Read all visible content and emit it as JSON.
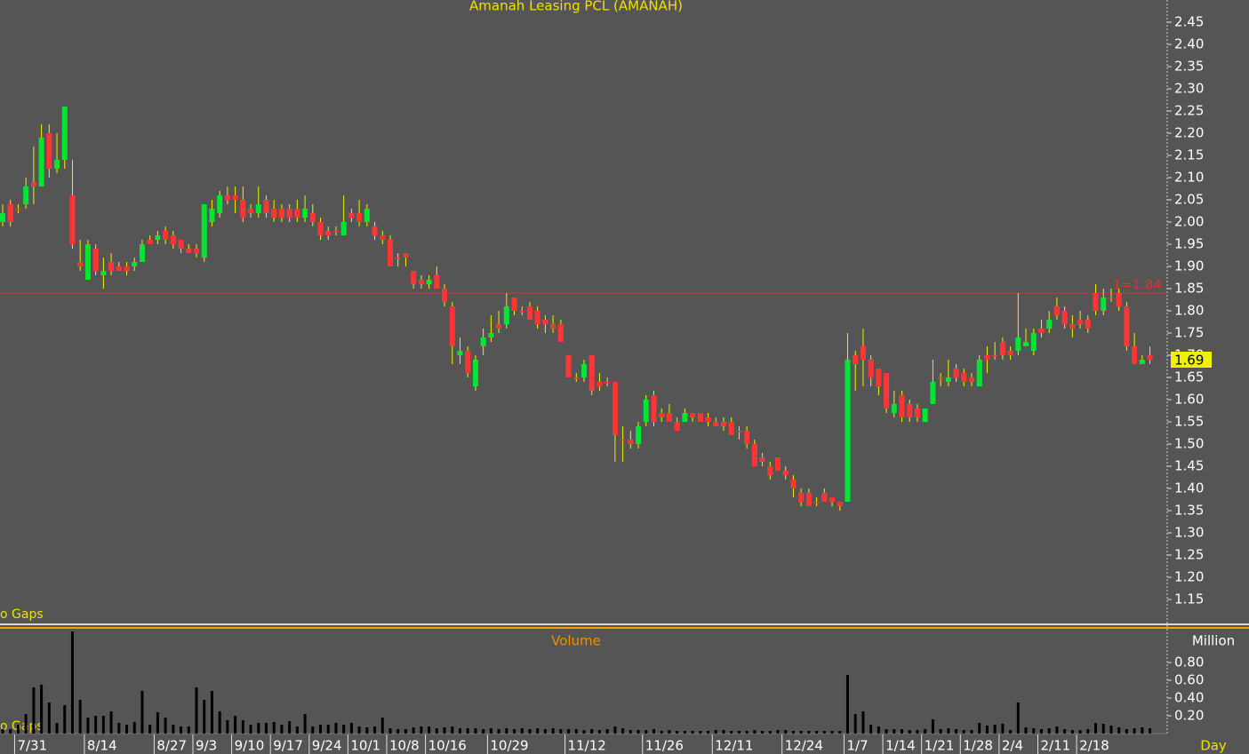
{
  "chart_data": {
    "type": "candlestick",
    "title": "Amanah Leasing PCL (AMANAH)",
    "gap_note": "o Gaps",
    "x_unit": "Day",
    "categories": [
      null,
      null,
      "7/31",
      null,
      null,
      null,
      null,
      null,
      null,
      null,
      null,
      "8/14",
      null,
      null,
      null,
      null,
      null,
      null,
      null,
      null,
      "8/27",
      null,
      null,
      null,
      null,
      "9/3",
      null,
      null,
      null,
      null,
      "9/10",
      null,
      null,
      null,
      null,
      "9/17",
      null,
      null,
      null,
      null,
      "9/24",
      null,
      null,
      null,
      null,
      "10/1",
      null,
      null,
      null,
      null,
      "10/8",
      null,
      null,
      null,
      null,
      "10/16",
      null,
      null,
      null,
      null,
      null,
      null,
      null,
      "10/29",
      null,
      null,
      null,
      null,
      null,
      null,
      null,
      null,
      null,
      "11/12",
      null,
      null,
      null,
      null,
      null,
      null,
      null,
      null,
      null,
      "11/26",
      null,
      null,
      null,
      null,
      null,
      null,
      null,
      null,
      "12/11",
      null,
      null,
      null,
      null,
      null,
      null,
      null,
      null,
      "12/24",
      null,
      null,
      null,
      null,
      null,
      null,
      null,
      "1/7",
      null,
      null,
      null,
      null,
      "1/14",
      null,
      null,
      null,
      null,
      "1/21",
      null,
      null,
      null,
      null,
      "1/28",
      null,
      null,
      null,
      null,
      "2/4",
      null,
      null,
      null,
      null,
      "2/11",
      null,
      null,
      null,
      null,
      "2/18",
      null,
      null,
      null,
      null,
      null,
      null,
      null,
      null,
      null
    ],
    "open": [
      2.0,
      2.04,
      2.03,
      2.04,
      2.09,
      2.08,
      2.2,
      2.12,
      2.14,
      2.06,
      1.91,
      1.87,
      1.94,
      1.88,
      1.91,
      1.9,
      1.9,
      1.9,
      1.91,
      1.96,
      1.96,
      1.98,
      1.97,
      1.96,
      1.94,
      1.94,
      1.92,
      2.0,
      2.02,
      2.06,
      2.06,
      2.05,
      2.03,
      2.02,
      2.05,
      2.03,
      2.03,
      2.03,
      2.03,
      2.01,
      2.02,
      2.0,
      1.98,
      1.98,
      1.97,
      2.02,
      2.02,
      2.0,
      1.99,
      1.97,
      1.96,
      1.92,
      1.93,
      1.89,
      1.87,
      1.86,
      1.88,
      1.85,
      1.81,
      1.7,
      1.71,
      1.63,
      1.72,
      1.74,
      1.77,
      1.77,
      1.83,
      1.8,
      1.81,
      1.8,
      1.78,
      1.77,
      1.77,
      1.7,
      1.65,
      1.65,
      1.7,
      1.64,
      1.64,
      1.64,
      1.51,
      1.51,
      1.5,
      1.55,
      1.61,
      1.57,
      1.57,
      1.55,
      1.55,
      1.57,
      1.57,
      1.56,
      1.55,
      1.55,
      1.55,
      1.53,
      1.53,
      1.5,
      1.47,
      1.45,
      1.47,
      1.44,
      1.42,
      1.39,
      1.39,
      1.37,
      1.39,
      1.38,
      1.37,
      1.37,
      1.7,
      1.72,
      1.69,
      1.67,
      1.66,
      1.57,
      1.61,
      1.59,
      1.58,
      1.55,
      1.59,
      1.65,
      1.64,
      1.67,
      1.66,
      1.65,
      1.63,
      1.7,
      1.7,
      1.73,
      1.71,
      1.71,
      1.72,
      1.71,
      1.76,
      1.76,
      1.81,
      1.8,
      1.77,
      1.78,
      1.78,
      1.84,
      1.8,
      1.83,
      1.84,
      1.81,
      1.72,
      1.68,
      1.7
    ],
    "high": [
      2.04,
      2.05,
      2.04,
      2.1,
      2.17,
      2.22,
      2.22,
      2.2,
      2.26,
      2.14,
      1.96,
      1.96,
      1.95,
      1.92,
      1.93,
      1.91,
      1.91,
      1.92,
      1.96,
      1.97,
      1.98,
      1.99,
      1.98,
      1.96,
      1.95,
      1.95,
      2.04,
      2.05,
      2.07,
      2.08,
      2.08,
      2.08,
      2.04,
      2.08,
      2.06,
      2.05,
      2.04,
      2.04,
      2.05,
      2.06,
      2.04,
      2.01,
      1.99,
      1.99,
      2.06,
      2.03,
      2.05,
      2.04,
      2.0,
      1.98,
      1.97,
      1.93,
      1.93,
      1.89,
      1.88,
      1.88,
      1.9,
      1.86,
      1.82,
      1.74,
      1.72,
      1.7,
      1.76,
      1.79,
      1.8,
      1.84,
      1.83,
      1.81,
      1.82,
      1.81,
      1.79,
      1.79,
      1.78,
      1.7,
      1.66,
      1.69,
      1.7,
      1.66,
      1.65,
      1.64,
      1.54,
      1.53,
      1.55,
      1.61,
      1.62,
      1.58,
      1.59,
      1.56,
      1.58,
      1.57,
      1.57,
      1.57,
      1.56,
      1.56,
      1.56,
      1.54,
      1.54,
      1.51,
      1.48,
      1.46,
      1.47,
      1.45,
      1.43,
      1.4,
      1.4,
      1.38,
      1.4,
      1.38,
      1.37,
      1.75,
      1.71,
      1.76,
      1.7,
      1.67,
      1.66,
      1.62,
      1.62,
      1.6,
      1.59,
      1.58,
      1.69,
      1.66,
      1.69,
      1.68,
      1.67,
      1.66,
      1.7,
      1.72,
      1.73,
      1.74,
      1.72,
      1.84,
      1.76,
      1.76,
      1.78,
      1.8,
      1.83,
      1.81,
      1.79,
      1.8,
      1.79,
      1.86,
      1.85,
      1.85,
      1.85,
      1.82,
      1.75,
      1.7,
      1.72
    ],
    "low": [
      1.99,
      1.99,
      2.02,
      2.03,
      2.04,
      2.08,
      2.1,
      2.11,
      2.12,
      1.94,
      1.89,
      1.87,
      1.88,
      1.85,
      1.88,
      1.89,
      1.88,
      1.89,
      1.91,
      1.95,
      1.95,
      1.95,
      1.94,
      1.93,
      1.93,
      1.92,
      1.91,
      1.99,
      2.01,
      2.04,
      2.02,
      2.0,
      2.01,
      2.01,
      2.01,
      2.0,
      2.0,
      2.0,
      2.0,
      2.0,
      1.99,
      1.96,
      1.96,
      1.97,
      1.97,
      2.0,
      1.99,
      1.99,
      1.96,
      1.95,
      1.9,
      1.9,
      1.9,
      1.85,
      1.85,
      1.85,
      1.85,
      1.81,
      1.68,
      1.68,
      1.65,
      1.62,
      1.7,
      1.73,
      1.75,
      1.76,
      1.79,
      1.79,
      1.78,
      1.76,
      1.75,
      1.75,
      1.73,
      1.65,
      1.64,
      1.64,
      1.61,
      1.62,
      1.63,
      1.46,
      1.46,
      1.49,
      1.49,
      1.54,
      1.54,
      1.55,
      1.55,
      1.53,
      1.55,
      1.55,
      1.55,
      1.54,
      1.54,
      1.53,
      1.52,
      1.51,
      1.49,
      1.45,
      1.45,
      1.42,
      1.44,
      1.42,
      1.38,
      1.36,
      1.36,
      1.36,
      1.37,
      1.36,
      1.35,
      1.37,
      1.62,
      1.63,
      1.63,
      1.61,
      1.57,
      1.56,
      1.55,
      1.55,
      1.55,
      1.55,
      1.59,
      1.63,
      1.63,
      1.64,
      1.63,
      1.63,
      1.63,
      1.66,
      1.69,
      1.69,
      1.69,
      1.7,
      1.72,
      1.7,
      1.74,
      1.75,
      1.78,
      1.76,
      1.74,
      1.76,
      1.75,
      1.79,
      1.79,
      1.82,
      1.8,
      1.71,
      1.68,
      1.68,
      1.68
    ],
    "close": [
      2.02,
      2.0,
      2.03,
      2.08,
      2.08,
      2.19,
      2.12,
      2.14,
      2.26,
      1.95,
      1.9,
      1.95,
      1.89,
      1.89,
      1.89,
      1.89,
      1.89,
      1.91,
      1.95,
      1.95,
      1.97,
      1.96,
      1.95,
      1.94,
      1.93,
      1.93,
      2.04,
      2.03,
      2.06,
      2.05,
      2.05,
      2.01,
      2.02,
      2.04,
      2.02,
      2.01,
      2.01,
      2.01,
      2.01,
      2.03,
      2.0,
      1.97,
      1.97,
      1.98,
      2.0,
      2.01,
      2.0,
      2.03,
      1.97,
      1.96,
      1.9,
      1.92,
      1.92,
      1.86,
      1.86,
      1.87,
      1.85,
      1.82,
      1.72,
      1.71,
      1.66,
      1.69,
      1.74,
      1.75,
      1.76,
      1.81,
      1.8,
      1.8,
      1.78,
      1.77,
      1.77,
      1.76,
      1.73,
      1.65,
      1.65,
      1.68,
      1.62,
      1.63,
      1.64,
      1.52,
      1.51,
      1.5,
      1.54,
      1.6,
      1.55,
      1.56,
      1.55,
      1.53,
      1.57,
      1.56,
      1.55,
      1.55,
      1.54,
      1.54,
      1.52,
      1.53,
      1.5,
      1.45,
      1.46,
      1.43,
      1.44,
      1.43,
      1.4,
      1.37,
      1.36,
      1.37,
      1.37,
      1.37,
      1.36,
      1.69,
      1.68,
      1.69,
      1.65,
      1.63,
      1.58,
      1.59,
      1.56,
      1.56,
      1.56,
      1.58,
      1.64,
      1.65,
      1.65,
      1.65,
      1.64,
      1.64,
      1.69,
      1.69,
      1.7,
      1.7,
      1.7,
      1.74,
      1.73,
      1.75,
      1.75,
      1.78,
      1.79,
      1.77,
      1.76,
      1.77,
      1.76,
      1.8,
      1.83,
      1.83,
      1.81,
      1.72,
      1.68,
      1.69,
      1.69
    ],
    "up_color": "#00e633",
    "down_color": "#ff3535",
    "wick_color": "#f0f000",
    "ylim": [
      1.1,
      2.5
    ],
    "yticks": [
      1.15,
      {
        "value": 1.2,
        "label": "1.20"
      },
      1.25,
      {
        "value": 1.3,
        "label": "1.30"
      },
      1.35,
      {
        "value": 1.4,
        "label": "1.40"
      },
      1.45,
      {
        "value": 1.5,
        "label": "1.50"
      },
      1.55,
      {
        "value": 1.6,
        "label": "1.60"
      },
      1.65,
      {
        "value": 1.7,
        "label": "1.70"
      },
      1.75,
      {
        "value": 1.8,
        "label": "1.80"
      },
      1.85,
      {
        "value": 1.9,
        "label": "1.90"
      },
      1.95,
      {
        "value": 2.0,
        "label": "2.00"
      },
      2.05,
      {
        "value": 2.1,
        "label": "2.10"
      },
      2.15,
      {
        "value": 2.2,
        "label": "2.20"
      },
      2.25,
      {
        "value": 2.3,
        "label": "2.30"
      },
      2.35,
      {
        "value": 2.4,
        "label": "2.40"
      },
      2.45
    ],
    "hline": {
      "value": 1.84,
      "label": "1=1.84",
      "color": "#e03030"
    },
    "last_price": 1.69,
    "volume": {
      "title": "Volume",
      "unit": "Million",
      "color": "#000000",
      "values": [
        0.05,
        0.05,
        0.1,
        0.22,
        0.52,
        0.55,
        0.35,
        0.12,
        0.32,
        1.15,
        0.38,
        0.18,
        0.2,
        0.2,
        0.25,
        0.12,
        0.1,
        0.13,
        0.48,
        0.1,
        0.24,
        0.18,
        0.1,
        0.08,
        0.08,
        0.52,
        0.38,
        0.48,
        0.25,
        0.15,
        0.2,
        0.15,
        0.1,
        0.12,
        0.12,
        0.13,
        0.1,
        0.14,
        0.08,
        0.22,
        0.08,
        0.1,
        0.1,
        0.12,
        0.1,
        0.12,
        0.08,
        0.07,
        0.08,
        0.18,
        0.06,
        0.05,
        0.05,
        0.07,
        0.08,
        0.08,
        0.06,
        0.07,
        0.08,
        0.06,
        0.06,
        0.06,
        0.05,
        0.06,
        0.05,
        0.06,
        0.05,
        0.06,
        0.05,
        0.06,
        0.05,
        0.06,
        0.05,
        0.05,
        0.05,
        0.04,
        0.05,
        0.04,
        0.05,
        0.08,
        0.06,
        0.04,
        0.04,
        0.04,
        0.05,
        0.03,
        0.04,
        0.03,
        0.03,
        0.03,
        0.03,
        0.03,
        0.04,
        0.04,
        0.03,
        0.03,
        0.03,
        0.04,
        0.03,
        0.03,
        0.04,
        0.04,
        0.03,
        0.03,
        0.03,
        0.03,
        0.03,
        0.03,
        0.03,
        0.66,
        0.22,
        0.25,
        0.1,
        0.08,
        0.05,
        0.05,
        0.05,
        0.04,
        0.04,
        0.05,
        0.16,
        0.05,
        0.06,
        0.05,
        0.04,
        0.04,
        0.12,
        0.09,
        0.1,
        0.11,
        0.04,
        0.35,
        0.07,
        0.06,
        0.05,
        0.06,
        0.08,
        0.05,
        0.04,
        0.04,
        0.05,
        0.12,
        0.11,
        0.09,
        0.07,
        0.05,
        0.06,
        0.07,
        0.06
      ],
      "ylim": [
        0,
        1.2
      ],
      "yticks": [
        {
          "value": 0.2,
          "label": "0.20"
        },
        {
          "value": 0.4,
          "label": "0.40"
        },
        {
          "value": 0.6,
          "label": "0.60"
        },
        {
          "value": 0.8,
          "label": "0.80"
        }
      ]
    }
  }
}
